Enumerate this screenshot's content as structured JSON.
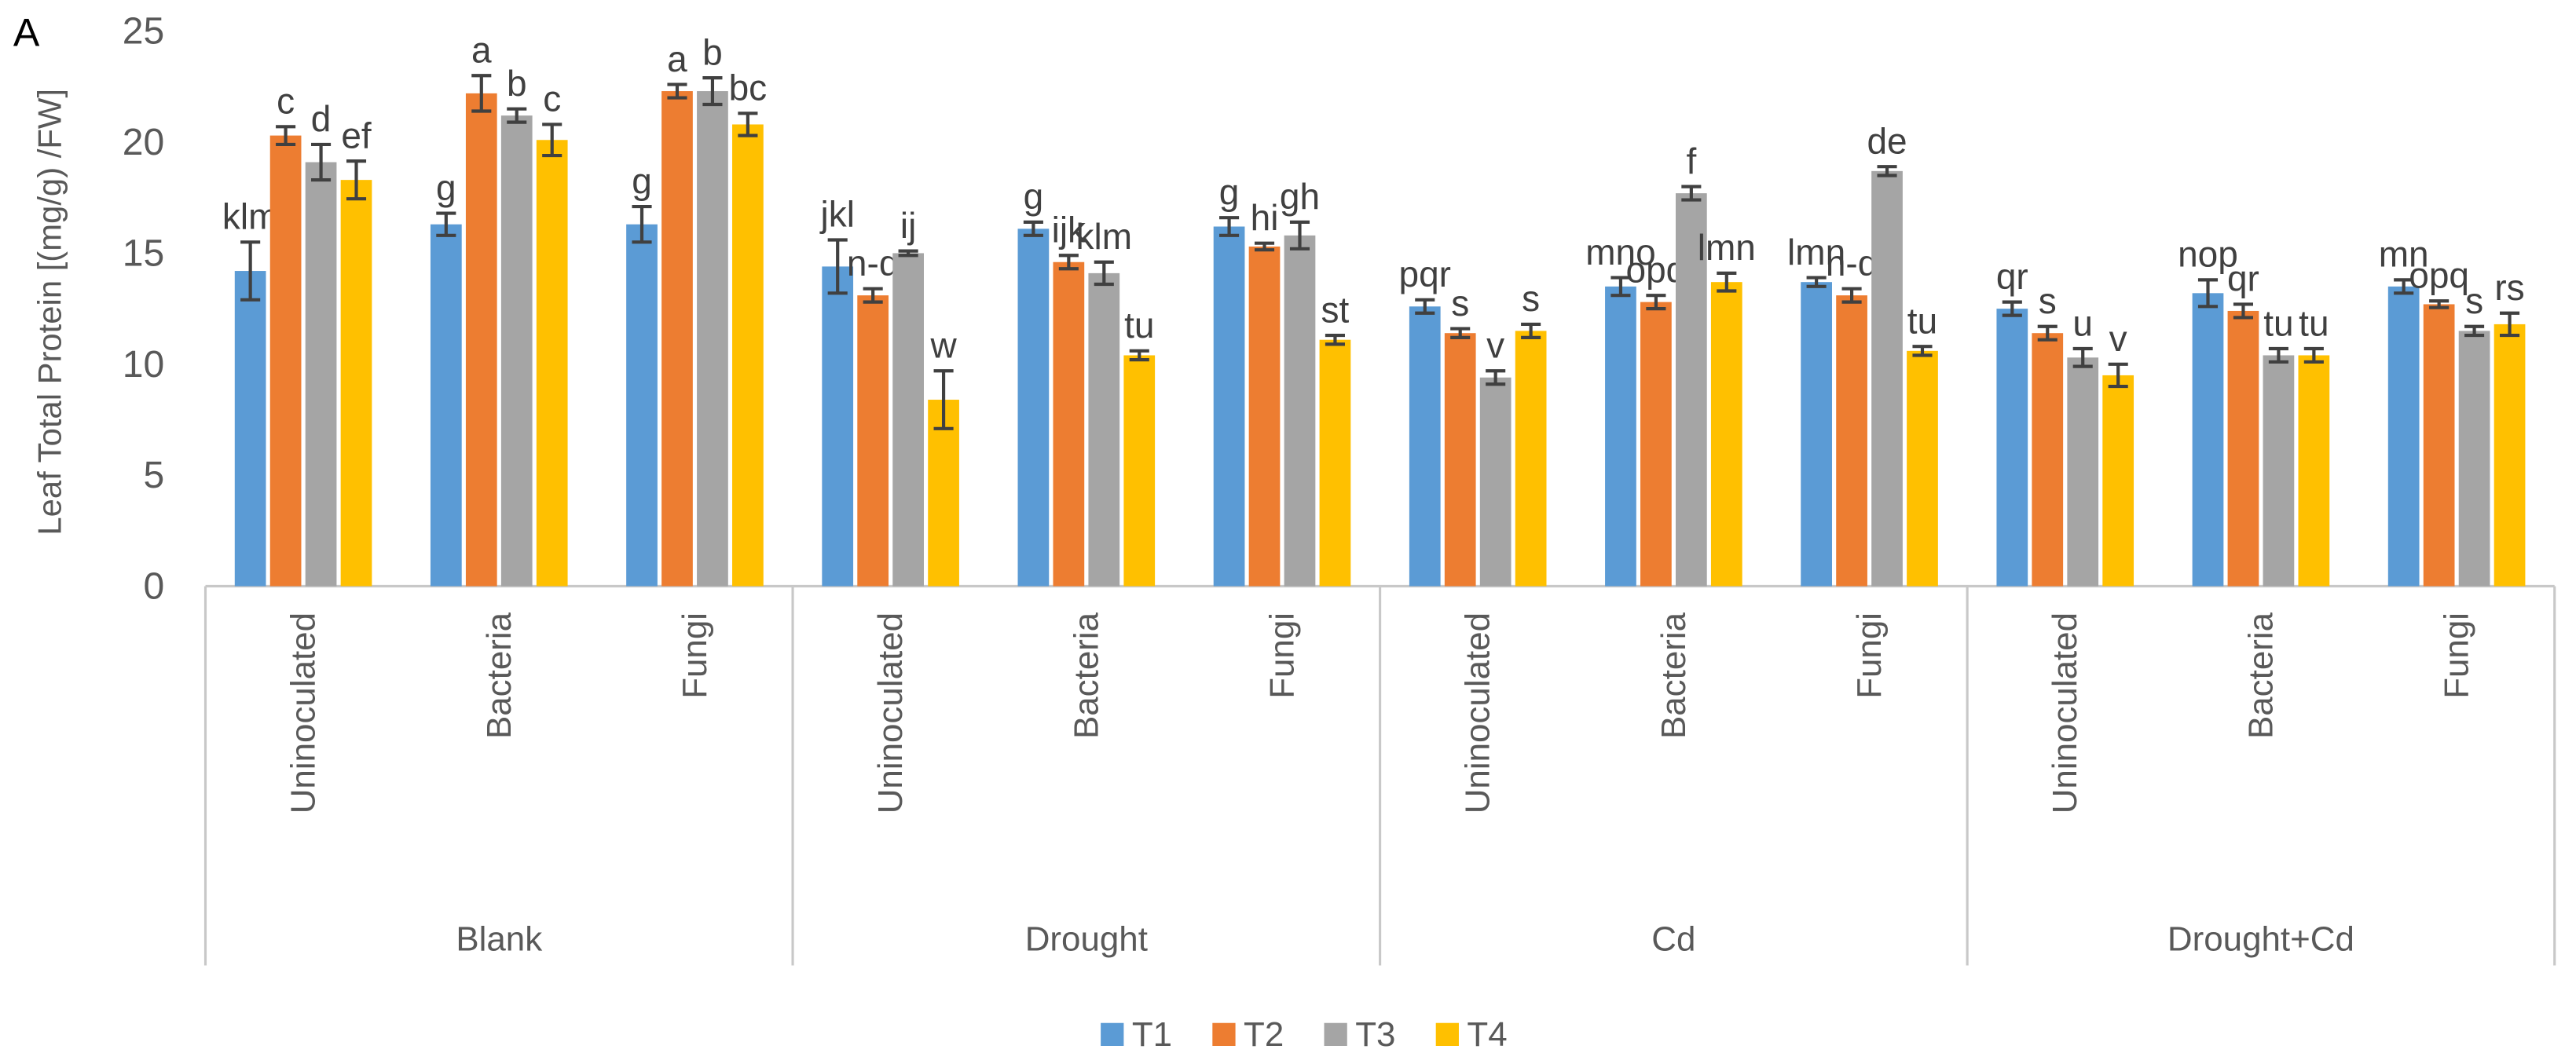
{
  "chart_data": {
    "type": "bar",
    "panel_label": "A",
    "title": "",
    "xlabel": "",
    "ylabel": "Leaf Total Protein [(mg/g) /FW]",
    "ylim": [
      0,
      25
    ],
    "yticks": [
      0,
      5,
      10,
      15,
      20,
      25
    ],
    "grid": false,
    "legend_position": "bottom",
    "groups": [
      {
        "name": "Blank",
        "categories": [
          "Uninoculated",
          "Bacteria",
          "Fungi"
        ]
      },
      {
        "name": "Drought",
        "categories": [
          "Uninoculated",
          "Bacteria",
          "Fungi"
        ]
      },
      {
        "name": "Cd",
        "categories": [
          "Uninoculated",
          "Bacteria",
          "Fungi"
        ]
      },
      {
        "name": "Drought+Cd",
        "categories": [
          "Uninoculated",
          "Bacteria",
          "Fungi"
        ]
      }
    ],
    "series": [
      {
        "name": "T1",
        "color": "#5B9BD5",
        "values": [
          14.2,
          16.3,
          16.3,
          14.4,
          16.1,
          16.2,
          12.6,
          13.5,
          13.7,
          12.5,
          13.2,
          13.5
        ],
        "errors": [
          1.3,
          0.5,
          0.8,
          1.2,
          0.3,
          0.4,
          0.3,
          0.4,
          0.2,
          0.3,
          0.6,
          0.3
        ],
        "letters": [
          "klm",
          "g",
          "g",
          "jkl",
          "g",
          "g",
          "pqr",
          "mno",
          "lmn",
          "qr",
          "nop",
          "mn"
        ]
      },
      {
        "name": "T2",
        "color": "#ED7D31",
        "values": [
          20.3,
          22.2,
          22.3,
          13.1,
          14.6,
          15.3,
          11.4,
          12.8,
          13.1,
          11.4,
          12.4,
          12.7
        ],
        "errors": [
          0.4,
          0.8,
          0.3,
          0.3,
          0.3,
          0.15,
          0.2,
          0.3,
          0.3,
          0.3,
          0.3,
          0.15
        ],
        "letters": [
          "c",
          "a",
          "a",
          "n-q",
          "ijk",
          "hi",
          "s",
          "opq",
          "n-q",
          "s",
          "qr",
          "opq"
        ]
      },
      {
        "name": "T3",
        "color": "#A5A5A5",
        "values": [
          19.1,
          21.2,
          22.3,
          15.0,
          14.1,
          15.8,
          9.4,
          17.7,
          18.7,
          10.3,
          10.4,
          11.5
        ],
        "errors": [
          0.8,
          0.3,
          0.6,
          0.1,
          0.5,
          0.6,
          0.3,
          0.3,
          0.2,
          0.4,
          0.3,
          0.2
        ],
        "letters": [
          "d",
          "b",
          "b",
          "ij",
          "klm",
          "gh",
          "v",
          "f",
          "de",
          "u",
          "tu",
          "s"
        ]
      },
      {
        "name": "T4",
        "color": "#FFC000",
        "values": [
          18.3,
          20.1,
          20.8,
          8.4,
          10.4,
          11.1,
          11.5,
          13.7,
          10.6,
          9.5,
          10.4,
          11.8
        ],
        "errors": [
          0.85,
          0.7,
          0.5,
          1.3,
          0.2,
          0.2,
          0.3,
          0.4,
          0.2,
          0.5,
          0.3,
          0.5
        ],
        "letters": [
          "ef",
          "c",
          "bc",
          "w",
          "tu",
          "st",
          "s",
          "lmn",
          "tu",
          "v",
          "tu",
          "rs"
        ]
      }
    ],
    "error_bar_color": "#404040"
  }
}
